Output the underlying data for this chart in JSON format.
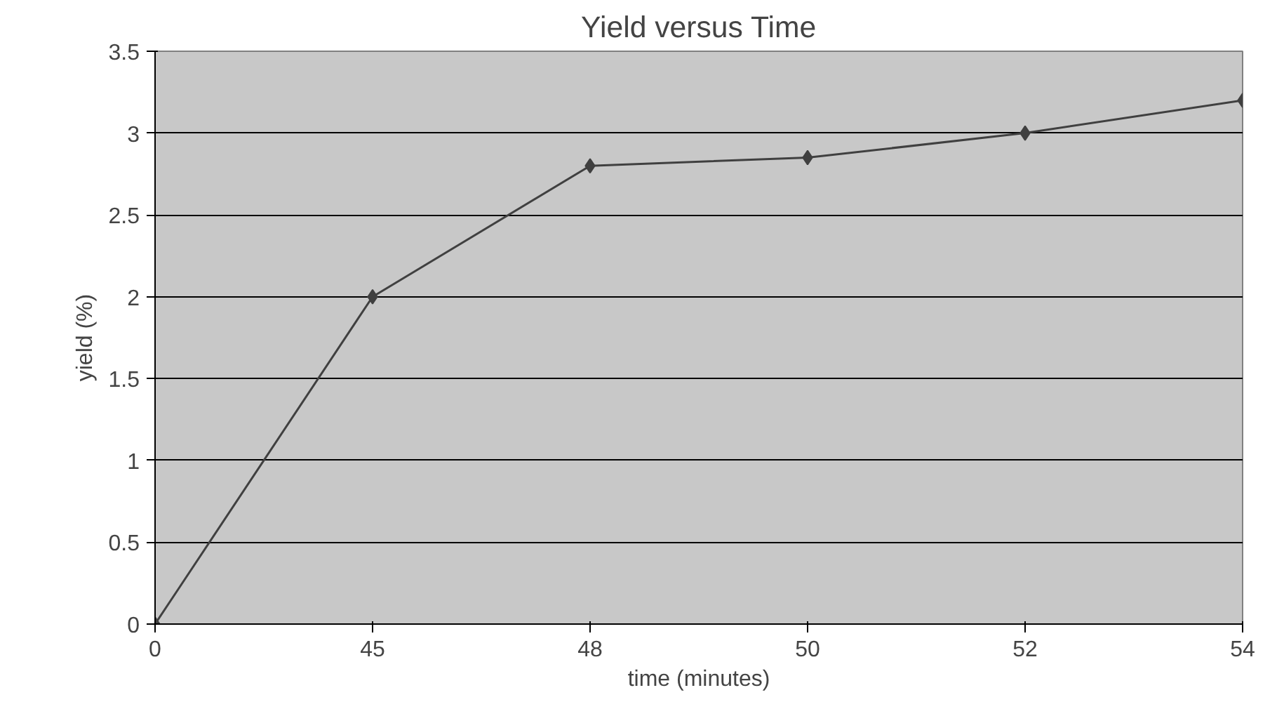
{
  "chart_data": {
    "type": "line",
    "title": "Yield versus Time",
    "xlabel": "time (minutes)",
    "ylabel": "yield (%)",
    "categories": [
      "0",
      "45",
      "48",
      "50",
      "52",
      "54"
    ],
    "series": [
      {
        "color": "#404040",
        "values": [
          0,
          2,
          2.8,
          2.85,
          3.0,
          3.2
        ]
      }
    ],
    "ylim": [
      0,
      3.5
    ],
    "yticks": [
      0,
      0.5,
      1,
      1.5,
      2,
      2.5,
      3,
      3.5
    ],
    "grid": "y",
    "marker": "diamond",
    "line_style": "solid"
  }
}
